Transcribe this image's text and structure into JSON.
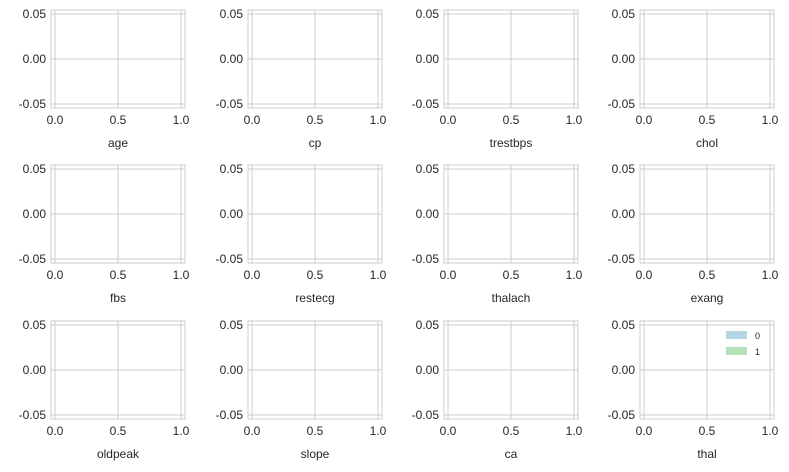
{
  "chart_data": {
    "type": "histogram",
    "grid": true,
    "xlim": [
      0.0,
      1.0
    ],
    "ylim": [
      -0.05,
      0.05
    ],
    "x_ticks": [
      "0.0",
      "0.5",
      "1.0"
    ],
    "y_ticks": [
      "0.05",
      "0.00",
      "-0.05"
    ],
    "series": [
      {
        "name": "0",
        "color": "#b7d3e6"
      },
      {
        "name": "1",
        "color": "#b6e0b6"
      }
    ],
    "legend": {
      "placement": "top-right",
      "panel": "thal"
    },
    "panels": [
      {
        "xlabel": "age",
        "values": []
      },
      {
        "xlabel": "cp",
        "values": []
      },
      {
        "xlabel": "trestbps",
        "values": []
      },
      {
        "xlabel": "chol",
        "values": []
      },
      {
        "xlabel": "fbs",
        "values": []
      },
      {
        "xlabel": "restecg",
        "values": []
      },
      {
        "xlabel": "thalach",
        "values": []
      },
      {
        "xlabel": "exang",
        "values": []
      },
      {
        "xlabel": "oldpeak",
        "values": []
      },
      {
        "xlabel": "slope",
        "values": []
      },
      {
        "xlabel": "ca",
        "values": []
      },
      {
        "xlabel": "thal",
        "values": []
      }
    ]
  }
}
